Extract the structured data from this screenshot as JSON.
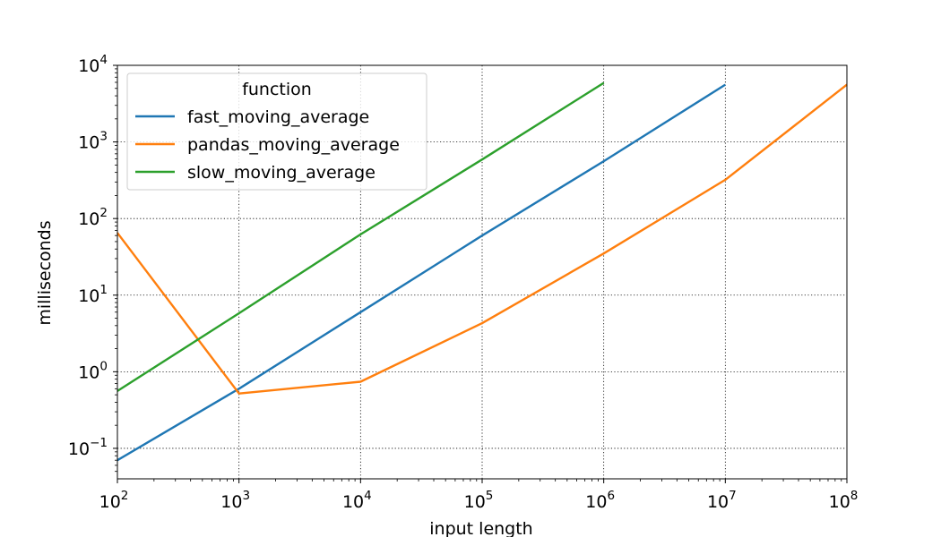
{
  "chart_data": {
    "type": "line",
    "xlabel": "input length",
    "ylabel": "milliseconds",
    "x_scale": "log",
    "y_scale": "log",
    "xlim": [
      100,
      100000000
    ],
    "ylim": [
      0.04,
      10000
    ],
    "x_ticks": [
      {
        "base": "10",
        "exp": "2",
        "value": 100
      },
      {
        "base": "10",
        "exp": "3",
        "value": 1000
      },
      {
        "base": "10",
        "exp": "4",
        "value": 10000
      },
      {
        "base": "10",
        "exp": "5",
        "value": 100000
      },
      {
        "base": "10",
        "exp": "6",
        "value": 1000000
      },
      {
        "base": "10",
        "exp": "7",
        "value": 10000000
      },
      {
        "base": "10",
        "exp": "8",
        "value": 100000000
      }
    ],
    "y_ticks": [
      {
        "base": "10",
        "exp": "−1",
        "value": 0.1
      },
      {
        "base": "10",
        "exp": "0",
        "value": 1
      },
      {
        "base": "10",
        "exp": "1",
        "value": 10
      },
      {
        "base": "10",
        "exp": "2",
        "value": 100
      },
      {
        "base": "10",
        "exp": "3",
        "value": 1000
      },
      {
        "base": "10",
        "exp": "4",
        "value": 10000
      }
    ],
    "grid": true,
    "legend": {
      "title": "function",
      "position": "upper-left"
    },
    "series": [
      {
        "name": "fast_moving_average",
        "color": "#1f77b4",
        "x": [
          100,
          1000,
          10000,
          100000,
          1000000,
          10000000
        ],
        "y": [
          0.07,
          0.6,
          6,
          60,
          560,
          5600
        ]
      },
      {
        "name": "pandas_moving_average",
        "color": "#ff7f0e",
        "x": [
          100,
          1000,
          10000,
          100000,
          1000000,
          10000000,
          100000000
        ],
        "y": [
          65,
          0.52,
          0.74,
          4.3,
          35,
          320,
          5600
        ]
      },
      {
        "name": "slow_moving_average",
        "color": "#2ca02c",
        "x": [
          100,
          1000,
          10000,
          100000,
          1000000
        ],
        "y": [
          0.56,
          5.8,
          62,
          590,
          5900
        ]
      }
    ]
  }
}
